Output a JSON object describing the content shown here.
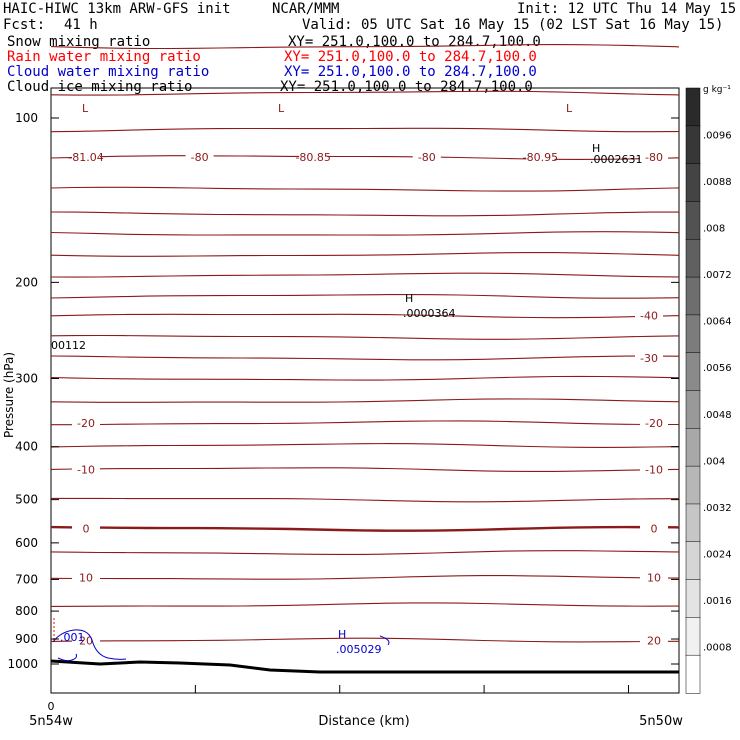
{
  "header": {
    "run": "HAIC-HIWC 13km ARW-GFS init",
    "org": "NCAR/MMM",
    "init": "Init: 12 UTC Thu 14 May 15",
    "fcst_label": "Fcst:",
    "fcst_value": "41 h",
    "valid": "Valid: 05 UTC Sat 16 May 15 (02 LST Sat 16 May 15)"
  },
  "fields": [
    {
      "name": "Snow mixing ratio",
      "xy": "XY= 251.0,100.0 to 284.7,100.0",
      "color": "#000000"
    },
    {
      "name": "Rain water mixing ratio",
      "xy": "XY= 251.0,100.0 to 284.7,100.0",
      "color": "#ff0000"
    },
    {
      "name": "Cloud water mixing ratio",
      "xy": "XY= 251.0,100.0 to 284.7,100.0",
      "color": "#0000cc"
    },
    {
      "name": "Cloud ice mixing ratio",
      "xy": "XY= 251.0,100.0 to 284.7,100.0",
      "color": "#000000"
    }
  ],
  "chart_data": {
    "type": "line",
    "ylabel": "Pressure (hPa)",
    "xlabel": "Distance (km)",
    "x_start_tick": "0",
    "x_left_label": "5n54w",
    "x_right_label": "5n50w",
    "y_ticks": [
      100,
      200,
      300,
      400,
      500,
      600,
      700,
      800,
      900,
      1000
    ],
    "ylim": [
      50,
      1050
    ],
    "y_scale": "log",
    "temperature_contours": {
      "color": "#8b1a1a",
      "levels": [
        {
          "p": 74
        },
        {
          "p": 90
        },
        {
          "p": 105
        },
        {
          "p": 118,
          "labels": [
            "-81.04",
            "-80",
            "-80.85",
            "-80",
            "-80.95",
            "-80"
          ]
        },
        {
          "p": 135
        },
        {
          "p": 150
        },
        {
          "p": 163
        },
        {
          "p": 178
        },
        {
          "p": 194
        },
        {
          "p": 212
        },
        {
          "p": 230,
          "labels": [
            "-40"
          ]
        },
        {
          "p": 252
        },
        {
          "p": 275,
          "labels": [
            "-30"
          ]
        },
        {
          "p": 300
        },
        {
          "p": 330
        },
        {
          "p": 362,
          "labels": [
            "-20",
            "-20"
          ]
        },
        {
          "p": 398
        },
        {
          "p": 440,
          "labels": [
            "-10",
            "-10"
          ]
        },
        {
          "p": 500
        },
        {
          "p": 565,
          "labels": [
            "0",
            "0"
          ],
          "bold": true
        },
        {
          "p": 625
        },
        {
          "p": 695,
          "labels": [
            "10",
            "10"
          ]
        },
        {
          "p": 780
        },
        {
          "p": 905,
          "labels": [
            "20",
            "20"
          ]
        }
      ],
      "extrema": [
        {
          "type": "L",
          "value": "-81.04"
        },
        {
          "type": "L",
          "value": "-80.85"
        },
        {
          "type": "L",
          "value": "-80.95"
        }
      ]
    },
    "mixing_ratio_extrema": [
      {
        "type": "H",
        "value": ".0002631",
        "color": "#000000"
      },
      {
        "type": "H",
        "value": ".0000364",
        "color": "#000000"
      },
      {
        "type": "",
        "value": "00112",
        "color": "#000000"
      },
      {
        "type": "H",
        "value": ".005029",
        "color": "#0000cc"
      },
      {
        "type": "",
        "value": ".001",
        "color": "#0000cc"
      }
    ],
    "colorbar": {
      "unit": "g kg⁻¹",
      "ticks": [
        ".0096",
        ".0088",
        ".008",
        ".0072",
        ".0064",
        ".0056",
        ".0048",
        ".004",
        ".0032",
        ".0024",
        ".0016",
        ".0008"
      ],
      "colors": [
        "#2a2a2a",
        "#373737",
        "#444444",
        "#525252",
        "#606060",
        "#6e6e6e",
        "#7c7c7c",
        "#8a8a8a",
        "#999999",
        "#a8a8a8",
        "#b7b7b7",
        "#c6c6c6",
        "#d5d5d5",
        "#e3e3e3",
        "#f1f1f1",
        "#ffffff"
      ]
    }
  }
}
